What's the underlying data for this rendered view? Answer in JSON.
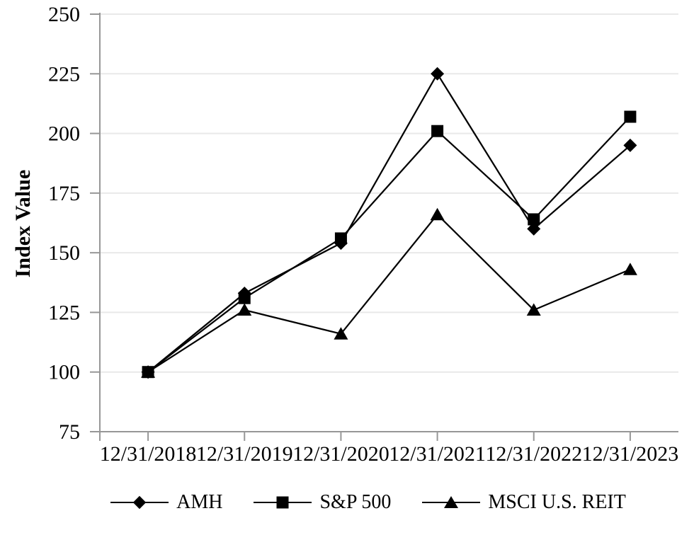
{
  "chart_data": {
    "type": "line",
    "title": "",
    "xlabel": "",
    "ylabel": "Index Value",
    "categories": [
      "12/31/2018",
      "12/31/2019",
      "12/31/2020",
      "12/31/2021",
      "12/31/2022",
      "12/31/2023"
    ],
    "series": [
      {
        "name": "AMH",
        "marker": "diamond",
        "values": [
          100,
          133,
          154,
          225,
          160,
          195
        ]
      },
      {
        "name": "S&P 500",
        "marker": "square",
        "values": [
          100,
          131,
          156,
          201,
          164,
          207
        ]
      },
      {
        "name": "MSCI U.S. REIT",
        "marker": "triangle",
        "values": [
          100,
          126,
          116,
          166,
          126,
          143
        ]
      }
    ],
    "y_ticks": [
      75,
      100,
      125,
      150,
      175,
      200,
      225,
      250
    ],
    "ylim": [
      75,
      250
    ],
    "grid": "horizontal",
    "legend_position": "bottom",
    "colors": {
      "series": "#000000",
      "axis": "#979797",
      "gridline": "#E9E9E9",
      "text": "#000000"
    }
  }
}
